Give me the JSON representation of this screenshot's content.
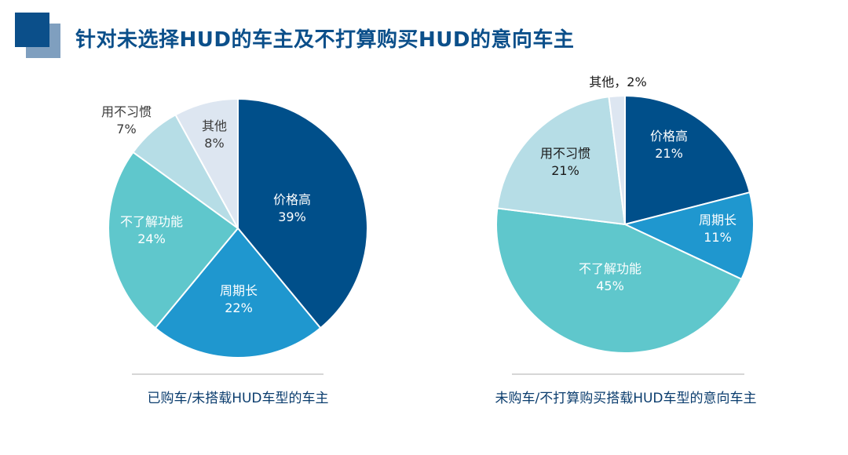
{
  "header": {
    "title": "针对未选择HUD的车主及不打算购买HUD的意向车主"
  },
  "chart_data": [
    {
      "type": "pie",
      "caption": "已购车/未搭载HUD车型的车主",
      "slices": [
        {
          "label": "价格高",
          "value": 39,
          "value_label": "39%",
          "color": "#004f8a",
          "text_color": "#ffffff"
        },
        {
          "label": "周期长",
          "value": 22,
          "value_label": "22%",
          "color": "#1f97cf",
          "text_color": "#ffffff"
        },
        {
          "label": "不了解功能",
          "value": 24,
          "value_label": "24%",
          "color": "#5fc7cc",
          "text_color": "#ffffff"
        },
        {
          "label": "用不习惯",
          "value": 7,
          "value_label": "7%",
          "color": "#b6dde6",
          "text_color": "#3a3a3a"
        },
        {
          "label": "其他",
          "value": 8,
          "value_label": "8%",
          "color": "#dde6f1",
          "text_color": "#3a3a3a"
        }
      ]
    },
    {
      "type": "pie",
      "caption": "未购车/不打算购买搭载HUD车型的意向车主",
      "slices": [
        {
          "label": "价格高",
          "value": 21,
          "value_label": "21%",
          "color": "#004f8a",
          "text_color": "#ffffff"
        },
        {
          "label": "周期长",
          "value": 11,
          "value_label": "11%",
          "color": "#1f97cf",
          "text_color": "#ffffff"
        },
        {
          "label": "不了解功能",
          "value": 45,
          "value_label": "45%",
          "color": "#5fc7cc",
          "text_color": "#ffffff"
        },
        {
          "label": "用不习惯",
          "value": 21,
          "value_label": "21%",
          "color": "#b6dde6",
          "text_color": "#1a1a1a"
        },
        {
          "label": "其他",
          "value": 2,
          "value_label": "其他，2%",
          "color": "#dde6f1",
          "text_color": "#1a1a1a"
        }
      ]
    }
  ]
}
